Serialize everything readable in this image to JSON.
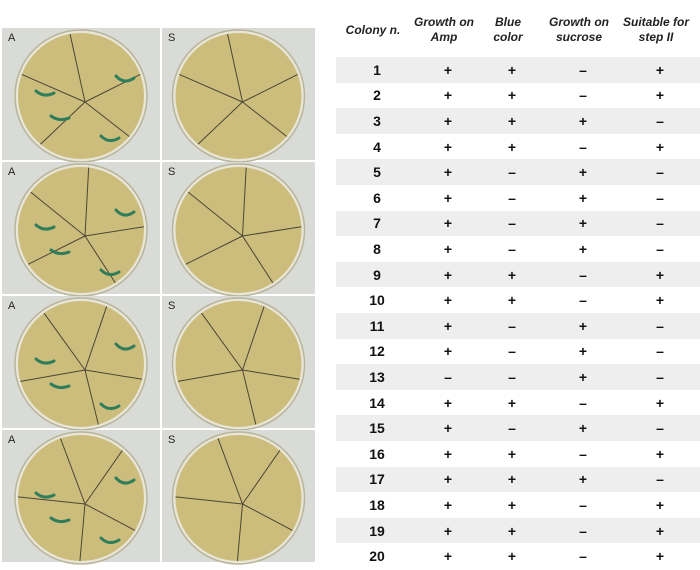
{
  "panels": [
    {
      "left_label": "A",
      "right_label": "S"
    },
    {
      "left_label": "A",
      "right_label": "S"
    },
    {
      "left_label": "A",
      "right_label": "S"
    },
    {
      "left_label": "A",
      "right_label": "S"
    }
  ],
  "table": {
    "headers": [
      "Colony n.",
      "Growth on Amp",
      "Blue color",
      "Growth on sucrose",
      "Suitable for step II"
    ],
    "rows": [
      [
        "1",
        "+",
        "+",
        "–",
        "+"
      ],
      [
        "2",
        "+",
        "+",
        "–",
        "+"
      ],
      [
        "3",
        "+",
        "+",
        "+",
        "–"
      ],
      [
        "4",
        "+",
        "+",
        "–",
        "+"
      ],
      [
        "5",
        "+",
        "–",
        "+",
        "–"
      ],
      [
        "6",
        "+",
        "–",
        "+",
        "–"
      ],
      [
        "7",
        "+",
        "–",
        "+",
        "–"
      ],
      [
        "8",
        "+",
        "–",
        "+",
        "–"
      ],
      [
        "9",
        "+",
        "+",
        "–",
        "+"
      ],
      [
        "10",
        "+",
        "+",
        "–",
        "+"
      ],
      [
        "11",
        "+",
        "–",
        "+",
        "–"
      ],
      [
        "12",
        "+",
        "–",
        "+",
        "–"
      ],
      [
        "13",
        "–",
        "–",
        "+",
        "–"
      ],
      [
        "14",
        "+",
        "+",
        "–",
        "+"
      ],
      [
        "15",
        "+",
        "–",
        "+",
        "–"
      ],
      [
        "16",
        "+",
        "+",
        "–",
        "+"
      ],
      [
        "17",
        "+",
        "+",
        "+",
        "–"
      ],
      [
        "18",
        "+",
        "+",
        "–",
        "+"
      ],
      [
        "19",
        "+",
        "+",
        "–",
        "+"
      ],
      [
        "20",
        "+",
        "+",
        "–",
        "+"
      ]
    ]
  }
}
